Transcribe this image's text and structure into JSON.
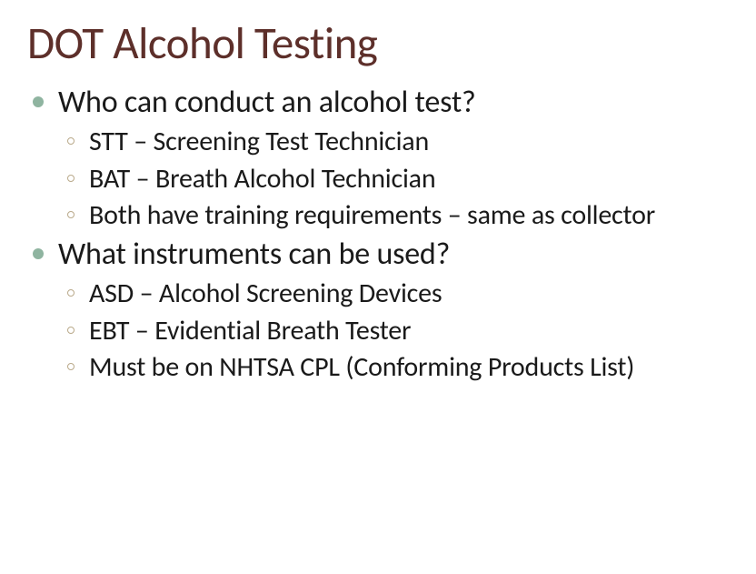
{
  "colors": {
    "title": "#5d2f2a",
    "body": "#1a1a1a",
    "bullet_l1": "#8fb4a0",
    "bullet_l2_ring": "#b9a98a",
    "background": "#ffffff"
  },
  "typography": {
    "title_fontsize": 49,
    "l1_fontsize": 34,
    "l2_fontsize": 30
  },
  "slide": {
    "title": "DOT Alcohol Testing",
    "sections": [
      {
        "heading": "Who can conduct an alcohol test?",
        "items": [
          "STT – Screening Test Technician",
          "BAT – Breath Alcohol Technician",
          "Both have training requirements – same as collector"
        ]
      },
      {
        "heading": "What instruments can be used?",
        "items": [
          "ASD – Alcohol Screening Devices",
          "EBT – Evidential Breath Tester",
          "Must be on NHTSA CPL (Conforming Products List)"
        ]
      }
    ]
  }
}
